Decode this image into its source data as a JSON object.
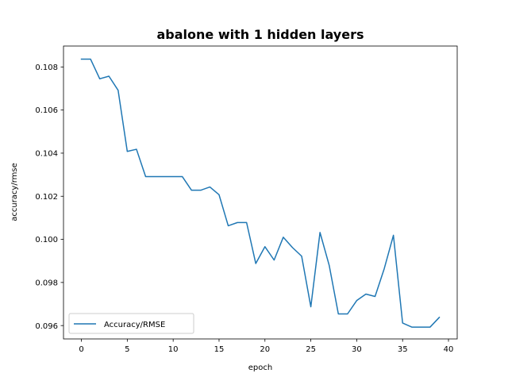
{
  "chart_data": {
    "type": "line",
    "title": "abalone with 1 hidden layers",
    "xlabel": "epoch",
    "ylabel": "accuracy/rmse",
    "xlim": [
      -1.95,
      40.95
    ],
    "ylim": [
      0.09538,
      0.10897
    ],
    "xticks": [
      0,
      5,
      10,
      15,
      20,
      25,
      30,
      35,
      40
    ],
    "xtick_labels": [
      "0",
      "5",
      "10",
      "15",
      "20",
      "25",
      "30",
      "35",
      "40"
    ],
    "yticks": [
      0.096,
      0.098,
      0.1,
      0.102,
      0.104,
      0.106,
      0.108
    ],
    "ytick_labels": [
      "0.096",
      "0.098",
      "0.100",
      "0.102",
      "0.104",
      "0.106",
      "0.108"
    ],
    "grid": false,
    "legend_position": "lower left",
    "series": [
      {
        "name": "Accuracy/RMSE",
        "color": "#1f77b4",
        "x": [
          0,
          1,
          2,
          3,
          4,
          5,
          6,
          7,
          8,
          9,
          10,
          11,
          12,
          13,
          14,
          15,
          16,
          17,
          18,
          19,
          20,
          21,
          22,
          23,
          24,
          25,
          26,
          27,
          28,
          29,
          30,
          31,
          32,
          33,
          34,
          35,
          36,
          37,
          38,
          39
        ],
        "values": [
          0.10836,
          0.10836,
          0.10745,
          0.10757,
          0.10692,
          0.10408,
          0.10418,
          0.10291,
          0.10291,
          0.10291,
          0.10291,
          0.10291,
          0.10228,
          0.10228,
          0.10243,
          0.10207,
          0.10063,
          0.10078,
          0.10078,
          0.09888,
          0.09966,
          0.09904,
          0.1001,
          0.09962,
          0.09922,
          0.09687,
          0.10032,
          0.0988,
          0.09654,
          0.09654,
          0.09716,
          0.09746,
          0.09735,
          0.09864,
          0.10019,
          0.09612,
          0.09593,
          0.09593,
          0.09593,
          0.09638
        ]
      }
    ]
  }
}
